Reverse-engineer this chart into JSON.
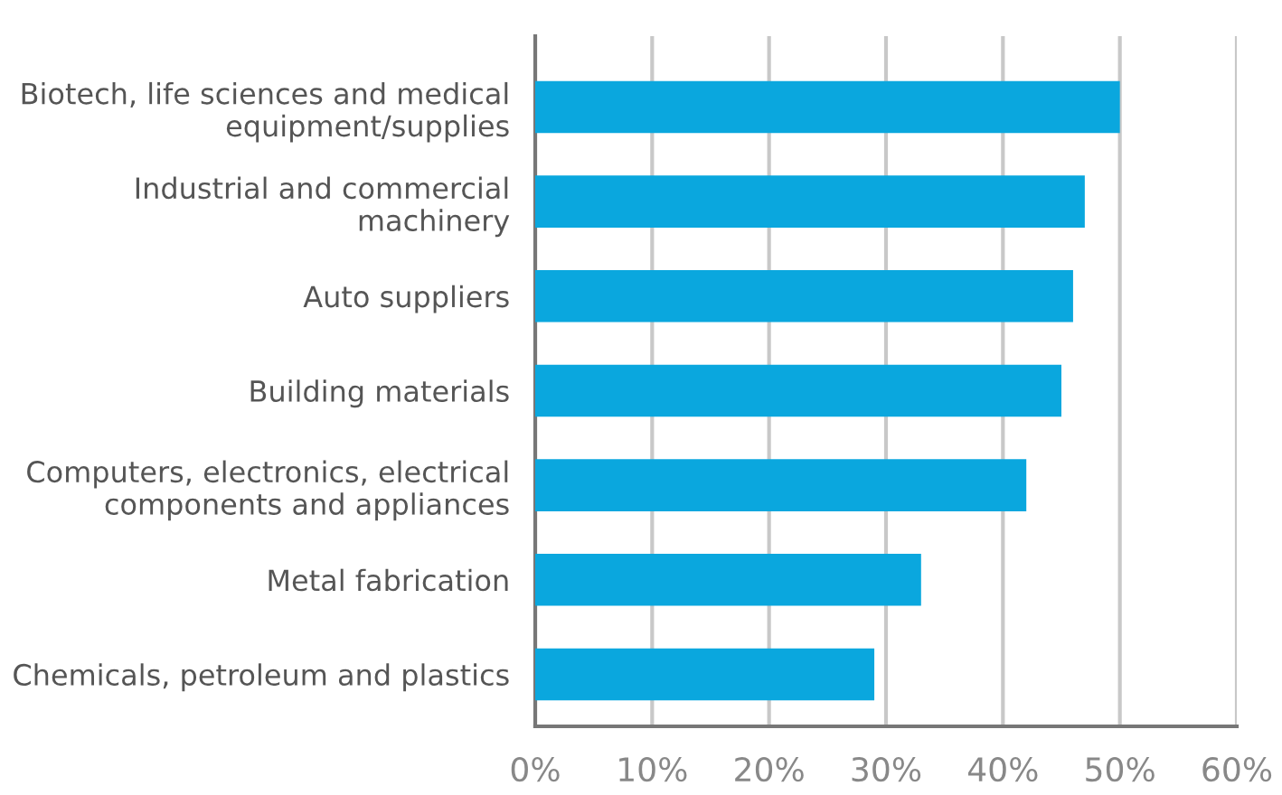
{
  "chart_data": {
    "type": "bar",
    "orientation": "horizontal",
    "categories": [
      "Biotech, life sciences and medical\nequipment/supplies",
      "Industrial and commercial\nmachinery",
      "Auto suppliers",
      "Building materials",
      "Computers, electronics, electrical\ncomponents and appliances",
      "Metal fabrication",
      "Chemicals, petroleum and plastics"
    ],
    "values": [
      50,
      47,
      46,
      45,
      42,
      33,
      29
    ],
    "color": "#0aa7de",
    "xlim": [
      0,
      60
    ],
    "xticks": [
      {
        "value": 0,
        "label": "0%"
      },
      {
        "value": 10,
        "label": "10%"
      },
      {
        "value": 20,
        "label": "20%"
      },
      {
        "value": 30,
        "label": "30%"
      },
      {
        "value": 40,
        "label": "40%"
      },
      {
        "value": 50,
        "label": "50%"
      },
      {
        "value": 60,
        "label": "60%"
      }
    ],
    "grid": "x"
  }
}
